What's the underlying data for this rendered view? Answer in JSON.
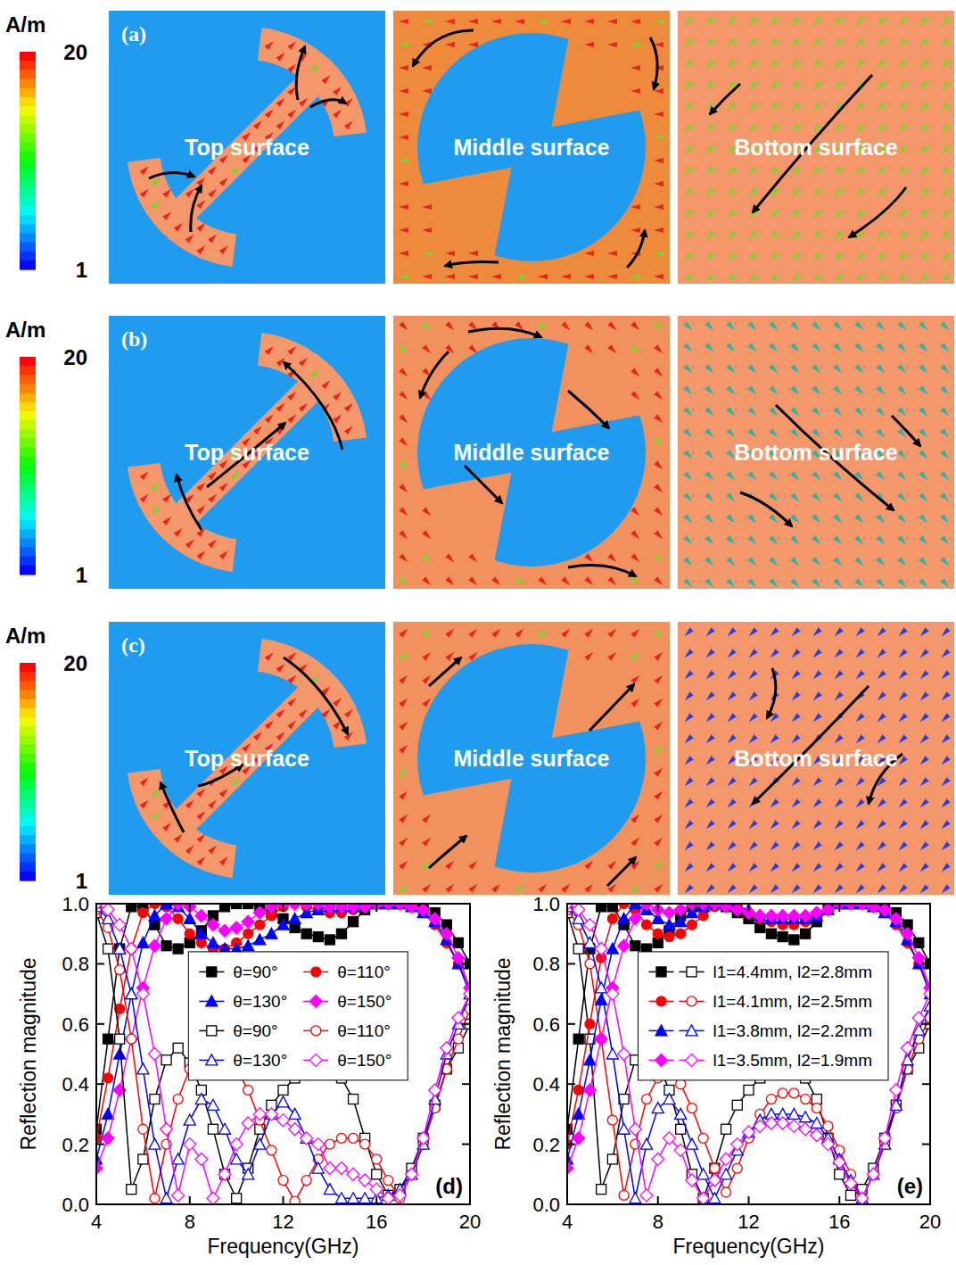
{
  "panels": [
    {
      "letter": "(a)",
      "colorbar": {
        "title": "A/m",
        "range": [
          1,
          20
        ],
        "ticks": [
          1,
          20
        ]
      },
      "surfaces": [
        "Top surface",
        "Middle surface",
        "Bottom surface"
      ]
    },
    {
      "letter": "(b)",
      "colorbar": {
        "title": "A/m",
        "range": [
          1,
          20
        ],
        "ticks": [
          1,
          20
        ]
      },
      "surfaces": [
        "Top surface",
        "Middle surface",
        "Bottom surface"
      ]
    },
    {
      "letter": "(c)",
      "colorbar": {
        "title": "A/m",
        "range": [
          1,
          20
        ],
        "ticks": [
          1,
          20
        ]
      },
      "surfaces": [
        "Top surface",
        "Middle surface",
        "Bottom surface"
      ]
    }
  ],
  "chart_data": [
    {
      "type": "line",
      "panel_label": "(d)",
      "x_label": "Frequency(GHz)",
      "y_label": "Reflection magnitude",
      "legend": "center",
      "x": [
        4,
        4.5,
        5,
        5.5,
        6,
        6.5,
        7,
        7.5,
        8,
        8.5,
        9,
        9.5,
        10,
        10.5,
        11,
        11.5,
        12,
        12.5,
        13,
        13.5,
        14,
        14.5,
        15,
        15.5,
        16,
        16.5,
        17,
        17.5,
        18,
        18.5,
        19,
        19.5,
        20
      ],
      "xlim": [
        4,
        20
      ],
      "xticks": [
        4,
        8,
        12,
        16,
        20
      ],
      "ylim": [
        0,
        1
      ],
      "yticks": [
        {
          "value": 0,
          "label": "0.0"
        },
        {
          "value": 0.2,
          "label": "0.2"
        },
        {
          "value": 0.4,
          "label": "0.4"
        },
        {
          "value": 0.6,
          "label": "0.6"
        },
        {
          "value": 0.8,
          "label": "0.8"
        },
        {
          "value": 1,
          "label": "1.0"
        }
      ],
      "series": [
        {
          "name": "θ=90°",
          "color": "#000000",
          "marker": "square",
          "line_style": "solid",
          "values": [
            0.25,
            0.55,
            0.85,
            0.99,
            0.99,
            0.93,
            0.86,
            0.85,
            0.87,
            0.91,
            0.96,
            0.99,
            1.0,
            1.0,
            0.99,
            0.97,
            0.95,
            0.92,
            0.9,
            0.89,
            0.88,
            0.9,
            0.94,
            0.98,
            1.0,
            1.0,
            1.0,
            1.0,
            0.99,
            0.97,
            0.93,
            0.87,
            0.8
          ]
        },
        {
          "name": "θ=110°",
          "color": "#ff0000",
          "marker": "circle",
          "line_style": "solid",
          "values": [
            0.22,
            0.42,
            0.65,
            0.85,
            0.97,
            1.0,
            0.99,
            0.95,
            0.9,
            0.87,
            0.85,
            0.85,
            0.87,
            0.9,
            0.93,
            0.96,
            0.99,
            1.0,
            0.99,
            0.98,
            0.97,
            0.97,
            0.98,
            0.99,
            1.0,
            1.0,
            1.0,
            0.99,
            0.97,
            0.93,
            0.87,
            0.8,
            0.72
          ]
        },
        {
          "name": "θ=130°",
          "color": "#0000ff",
          "marker": "triangle",
          "line_style": "solid",
          "values": [
            0.15,
            0.3,
            0.5,
            0.7,
            0.87,
            0.96,
            1.0,
            0.99,
            0.95,
            0.9,
            0.87,
            0.85,
            0.85,
            0.86,
            0.88,
            0.9,
            0.93,
            0.95,
            0.97,
            0.98,
            0.99,
            0.99,
            0.99,
            1.0,
            1.0,
            1.0,
            1.0,
            0.99,
            0.97,
            0.94,
            0.88,
            0.8,
            0.7
          ]
        },
        {
          "name": "θ=150°",
          "color": "#ff00ff",
          "marker": "diamond",
          "line_style": "solid",
          "values": [
            0.12,
            0.22,
            0.38,
            0.55,
            0.72,
            0.86,
            0.95,
            1.0,
            0.99,
            0.96,
            0.93,
            0.91,
            0.92,
            0.94,
            0.97,
            0.99,
            1.0,
            1.0,
            1.0,
            1.0,
            0.99,
            0.99,
            0.99,
            0.99,
            1.0,
            1.0,
            1.0,
            0.99,
            0.98,
            0.95,
            0.9,
            0.82,
            0.72
          ]
        },
        {
          "name": "θ=90°",
          "color": "#000000",
          "marker": "square-open",
          "line_style": "solid",
          "values": [
            0.97,
            0.85,
            0.55,
            0.05,
            0.15,
            0.35,
            0.48,
            0.52,
            0.47,
            0.38,
            0.25,
            0.1,
            0.02,
            0.12,
            0.25,
            0.33,
            0.38,
            0.42,
            0.44,
            0.45,
            0.45,
            0.42,
            0.35,
            0.22,
            0.1,
            0.03,
            0.05,
            0.12,
            0.22,
            0.33,
            0.45,
            0.52,
            0.6
          ]
        },
        {
          "name": "θ=110°",
          "color": "#ff0000",
          "marker": "circle-open",
          "line_style": "solid",
          "values": [
            0.98,
            0.92,
            0.78,
            0.55,
            0.25,
            0.02,
            0.2,
            0.35,
            0.45,
            0.5,
            0.52,
            0.5,
            0.45,
            0.38,
            0.28,
            0.18,
            0.08,
            0.01,
            0.08,
            0.15,
            0.2,
            0.22,
            0.22,
            0.2,
            0.15,
            0.08,
            0.02,
            0.1,
            0.2,
            0.32,
            0.45,
            0.55,
            0.65
          ]
        },
        {
          "name": "θ=130°",
          "color": "#0000ff",
          "marker": "triangle-open",
          "line_style": "solid",
          "values": [
            0.99,
            0.95,
            0.85,
            0.7,
            0.45,
            0.2,
            0.02,
            0.15,
            0.28,
            0.35,
            0.33,
            0.25,
            0.15,
            0.1,
            0.2,
            0.3,
            0.34,
            0.3,
            0.22,
            0.12,
            0.05,
            0.02,
            0.02,
            0.02,
            0.02,
            0.03,
            0.05,
            0.1,
            0.2,
            0.35,
            0.5,
            0.6,
            0.7
          ]
        },
        {
          "name": "θ=150°",
          "color": "#ff00ff",
          "marker": "diamond-open",
          "line_style": "solid",
          "values": [
            1.0,
            0.98,
            0.93,
            0.85,
            0.7,
            0.5,
            0.25,
            0.03,
            0.2,
            0.15,
            0.02,
            0.1,
            0.2,
            0.27,
            0.3,
            0.3,
            0.28,
            0.25,
            0.22,
            0.2,
            0.12,
            0.12,
            0.1,
            0.08,
            0.05,
            0.02,
            0.03,
            0.1,
            0.22,
            0.38,
            0.52,
            0.62,
            0.7
          ]
        }
      ]
    },
    {
      "type": "line",
      "panel_label": "(e)",
      "x_label": "Frequency(GHz)",
      "y_label": "Reflection magnitude",
      "legend": "center",
      "x": [
        4,
        4.5,
        5,
        5.5,
        6,
        6.5,
        7,
        7.5,
        8,
        8.5,
        9,
        9.5,
        10,
        10.5,
        11,
        11.5,
        12,
        12.5,
        13,
        13.5,
        14,
        14.5,
        15,
        15.5,
        16,
        16.5,
        17,
        17.5,
        18,
        18.5,
        19,
        19.5,
        20
      ],
      "xlim": [
        4,
        20
      ],
      "xticks": [
        4,
        8,
        12,
        16,
        20
      ],
      "ylim": [
        0,
        1
      ],
      "yticks": [
        {
          "value": 0,
          "label": "0.0"
        },
        {
          "value": 0.2,
          "label": "0.2"
        },
        {
          "value": 0.4,
          "label": "0.4"
        },
        {
          "value": 0.6,
          "label": "0.6"
        },
        {
          "value": 0.8,
          "label": "0.8"
        },
        {
          "value": 1,
          "label": "1.0"
        }
      ],
      "series": [
        {
          "name": "l1=4.4mm, l2=2.8mm",
          "color": "#000000",
          "marker": "square",
          "line_style": "solid",
          "values": [
            0.25,
            0.55,
            0.85,
            0.99,
            0.99,
            0.93,
            0.86,
            0.85,
            0.87,
            0.91,
            0.96,
            0.99,
            1.0,
            1.0,
            0.99,
            0.97,
            0.95,
            0.92,
            0.9,
            0.89,
            0.88,
            0.9,
            0.94,
            0.98,
            1.0,
            1.0,
            1.0,
            1.0,
            0.99,
            0.97,
            0.93,
            0.87,
            0.8
          ]
        },
        {
          "color": "#000000",
          "marker": "square-open",
          "line_style": "solid",
          "values": [
            0.97,
            0.85,
            0.55,
            0.05,
            0.15,
            0.35,
            0.48,
            0.52,
            0.47,
            0.38,
            0.25,
            0.1,
            0.02,
            0.12,
            0.25,
            0.33,
            0.38,
            0.42,
            0.44,
            0.45,
            0.45,
            0.42,
            0.35,
            0.22,
            0.1,
            0.03,
            0.05,
            0.12,
            0.22,
            0.33,
            0.45,
            0.52,
            0.6
          ]
        },
        {
          "name": "l1=4.1mm, l2=2.5mm",
          "color": "#ff0000",
          "marker": "circle",
          "line_style": "solid",
          "values": [
            0.2,
            0.38,
            0.6,
            0.82,
            0.95,
            1.0,
            0.98,
            0.93,
            0.9,
            0.89,
            0.9,
            0.93,
            0.96,
            0.99,
            1.0,
            0.99,
            0.97,
            0.95,
            0.94,
            0.93,
            0.93,
            0.94,
            0.96,
            0.98,
            1.0,
            1.0,
            1.0,
            0.99,
            0.97,
            0.93,
            0.87,
            0.8,
            0.72
          ]
        },
        {
          "color": "#ff0000",
          "marker": "circle-open",
          "line_style": "solid",
          "values": [
            0.98,
            0.93,
            0.8,
            0.55,
            0.28,
            0.03,
            0.2,
            0.35,
            0.42,
            0.44,
            0.4,
            0.32,
            0.22,
            0.12,
            0.04,
            0.12,
            0.22,
            0.3,
            0.35,
            0.37,
            0.37,
            0.35,
            0.32,
            0.26,
            0.18,
            0.1,
            0.02,
            0.1,
            0.2,
            0.32,
            0.45,
            0.55,
            0.62
          ]
        },
        {
          "name": "l1=3.8mm, l2=2.2mm",
          "color": "#0000ff",
          "marker": "triangle",
          "line_style": "solid",
          "values": [
            0.15,
            0.3,
            0.48,
            0.68,
            0.85,
            0.95,
            1.0,
            0.98,
            0.95,
            0.93,
            0.94,
            0.97,
            0.99,
            1.0,
            1.0,
            0.99,
            0.98,
            0.96,
            0.95,
            0.95,
            0.95,
            0.95,
            0.96,
            0.98,
            1.0,
            1.0,
            1.0,
            0.99,
            0.97,
            0.94,
            0.88,
            0.8,
            0.7
          ]
        },
        {
          "color": "#0000ff",
          "marker": "triangle-open",
          "line_style": "solid",
          "values": [
            0.99,
            0.95,
            0.87,
            0.72,
            0.5,
            0.25,
            0.02,
            0.2,
            0.32,
            0.35,
            0.3,
            0.2,
            0.1,
            0.02,
            0.1,
            0.18,
            0.24,
            0.28,
            0.3,
            0.3,
            0.3,
            0.29,
            0.27,
            0.22,
            0.15,
            0.08,
            0.02,
            0.1,
            0.2,
            0.33,
            0.48,
            0.58,
            0.66
          ]
        },
        {
          "name": "l1=3.5mm, l2=1.9mm",
          "color": "#ff00ff",
          "marker": "diamond",
          "line_style": "solid",
          "values": [
            0.12,
            0.22,
            0.38,
            0.55,
            0.72,
            0.86,
            0.95,
            1.0,
            0.98,
            0.97,
            0.98,
            1.0,
            1.0,
            1.0,
            0.99,
            0.98,
            0.97,
            0.96,
            0.96,
            0.96,
            0.96,
            0.96,
            0.97,
            0.98,
            1.0,
            1.0,
            1.0,
            0.99,
            0.98,
            0.95,
            0.9,
            0.82,
            0.72
          ]
        },
        {
          "color": "#ff00ff",
          "marker": "diamond-open",
          "line_style": "solid",
          "values": [
            1.0,
            0.98,
            0.93,
            0.85,
            0.7,
            0.5,
            0.25,
            0.03,
            0.15,
            0.22,
            0.18,
            0.08,
            0.02,
            0.08,
            0.15,
            0.2,
            0.24,
            0.26,
            0.27,
            0.27,
            0.26,
            0.25,
            0.23,
            0.2,
            0.14,
            0.07,
            0.02,
            0.1,
            0.22,
            0.38,
            0.52,
            0.62,
            0.7
          ]
        }
      ]
    }
  ]
}
